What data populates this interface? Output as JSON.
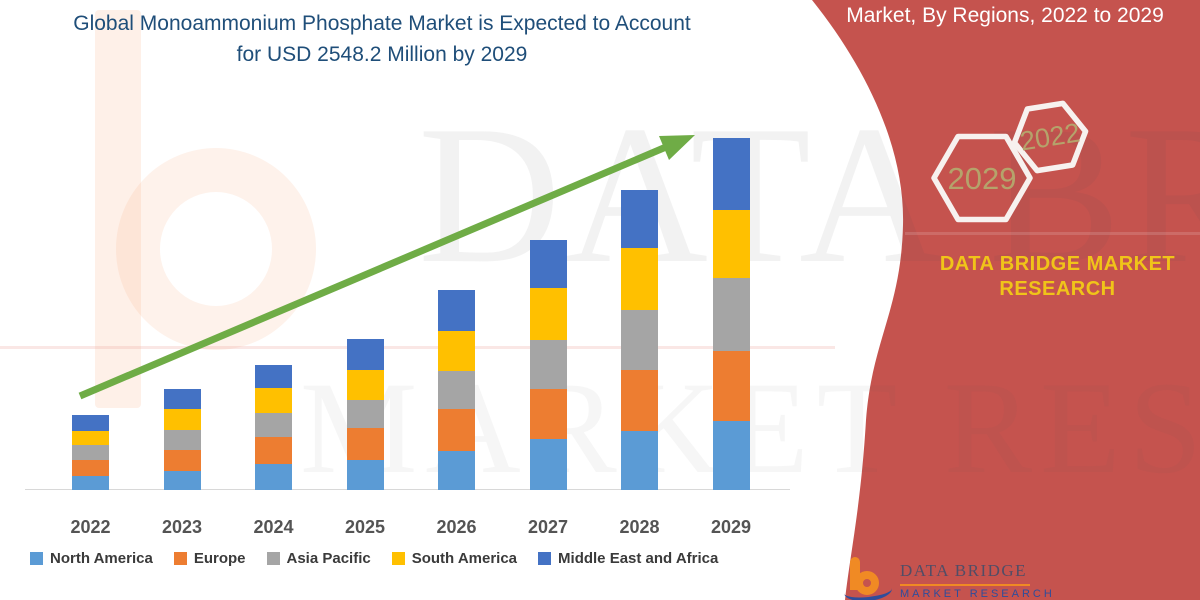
{
  "header": {
    "title": "Global Monoammonium Phosphate Market is Expected to Account for USD 2548.2 Million by 2029",
    "title_color": "#1F4E79",
    "banner_title": "Market, By Regions, 2022 to 2029"
  },
  "banner": {
    "color": "#C5534E",
    "hexagon_outline_color": "#F7F1EF",
    "hexagon_text_color": "#B5A36B",
    "hexagons": [
      {
        "label": "2029"
      },
      {
        "label": "2022"
      }
    ],
    "brand_line1": "DATA BRIDGE MARKET",
    "brand_line2": "RESEARCH",
    "brand_text_color": "#F0C419"
  },
  "watermark": {
    "line1": "DATA BRIDGE",
    "line2": "MARKET RESEARCH"
  },
  "footer_logo": {
    "name": "DATA BRIDGE",
    "sub": "MARKET RESEARCH"
  },
  "chart_data": {
    "type": "bar",
    "stacked": true,
    "title": "Global Monoammonium Phosphate Market, By Regions, 2022 to 2029",
    "unit": "USD Million",
    "values_estimated": true,
    "anchor_total_2029": 2548.2,
    "categories": [
      "2022",
      "2023",
      "2024",
      "2025",
      "2026",
      "2027",
      "2028",
      "2029"
    ],
    "series": [
      {
        "name": "North America",
        "color": "#5B9BD5",
        "values": [
          100,
          135,
          190,
          215,
          285,
          370,
          430,
          500
        ]
      },
      {
        "name": "Europe",
        "color": "#ED7D31",
        "values": [
          120,
          155,
          195,
          235,
          305,
          360,
          440,
          510
        ]
      },
      {
        "name": "Asia Pacific",
        "color": "#A5A5A5",
        "values": [
          105,
          145,
          170,
          205,
          275,
          360,
          430,
          525
        ]
      },
      {
        "name": "South America",
        "color": "#FFC000",
        "values": [
          100,
          155,
          185,
          215,
          285,
          375,
          450,
          495
        ]
      },
      {
        "name": "Middle East and Africa",
        "color": "#4472C4",
        "values": [
          115,
          145,
          165,
          220,
          300,
          345,
          425,
          518.2
        ]
      }
    ],
    "totals": [
      540,
      735,
      905,
      1090,
      1450,
      1810,
      2175,
      2548.2
    ],
    "trend_arrow_color": "#6FAC46",
    "legend_position": "bottom",
    "x_axis_visible": true,
    "y_axis_visible": false
  }
}
